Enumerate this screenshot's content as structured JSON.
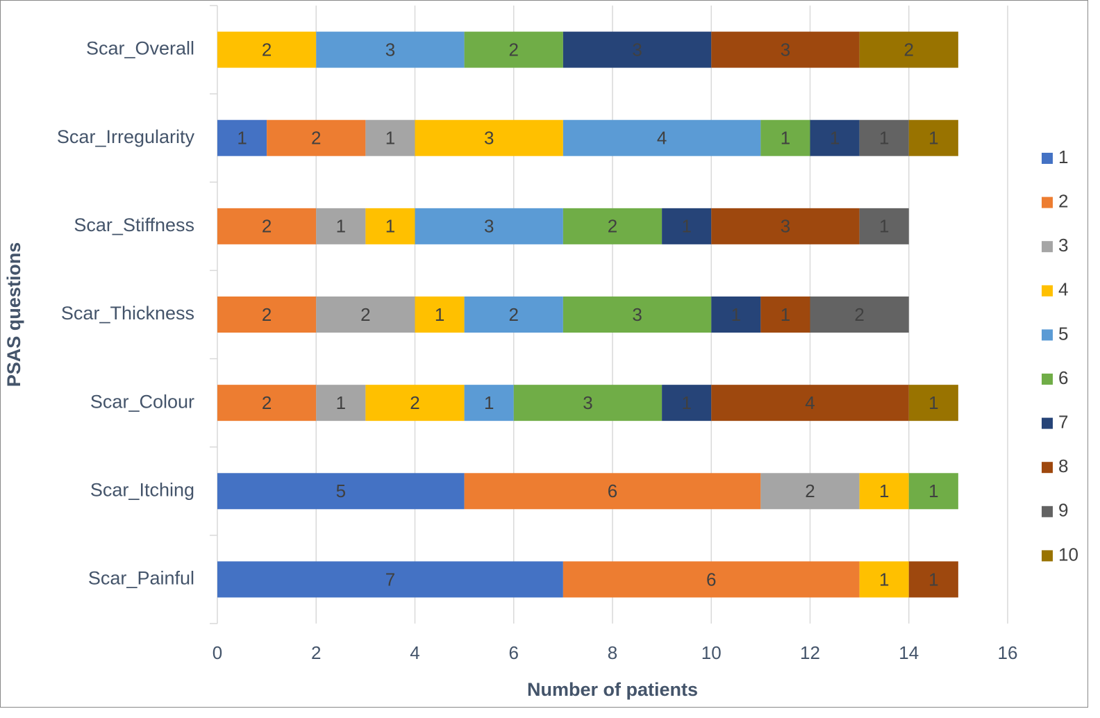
{
  "chart_data": {
    "type": "stacked-bar-horizontal",
    "x_label": "Number of patients",
    "y_label": "PSAS questions",
    "categories": [
      "Scar_Overall",
      "Scar_Irregularity",
      "Scar_Stiffness",
      "Scar_Thickness",
      "Scar_Colour",
      "Scar_Itching",
      "Scar_Painful"
    ],
    "series": [
      {
        "name": "1",
        "color": "#4472c4",
        "values": [
          null,
          1,
          null,
          null,
          null,
          5,
          7
        ]
      },
      {
        "name": "2",
        "color": "#ed7d31",
        "values": [
          null,
          2,
          2,
          2,
          2,
          6,
          6
        ]
      },
      {
        "name": "3",
        "color": "#a5a5a5",
        "values": [
          null,
          1,
          1,
          2,
          1,
          2,
          null
        ]
      },
      {
        "name": "4",
        "color": "#ffc000",
        "values": [
          2,
          3,
          1,
          1,
          2,
          1,
          1
        ]
      },
      {
        "name": "5",
        "color": "#5b9bd5",
        "values": [
          3,
          4,
          3,
          2,
          1,
          null,
          null
        ]
      },
      {
        "name": "6",
        "color": "#70ad47",
        "values": [
          2,
          1,
          2,
          3,
          3,
          1,
          null
        ]
      },
      {
        "name": "7",
        "color": "#264478",
        "values": [
          3,
          1,
          1,
          1,
          1,
          null,
          null
        ]
      },
      {
        "name": "8",
        "color": "#9e480e",
        "values": [
          3,
          null,
          3,
          1,
          4,
          null,
          1
        ]
      },
      {
        "name": "9",
        "color": "#636363",
        "values": [
          null,
          1,
          1,
          2,
          null,
          null,
          null
        ]
      },
      {
        "name": "10",
        "color": "#997300",
        "values": [
          2,
          1,
          null,
          null,
          1,
          null,
          null
        ]
      }
    ],
    "xlim": [
      0,
      16
    ],
    "xticks": [
      0,
      2,
      4,
      6,
      8,
      10,
      12,
      14,
      16
    ],
    "grid": true,
    "legend": "right"
  }
}
